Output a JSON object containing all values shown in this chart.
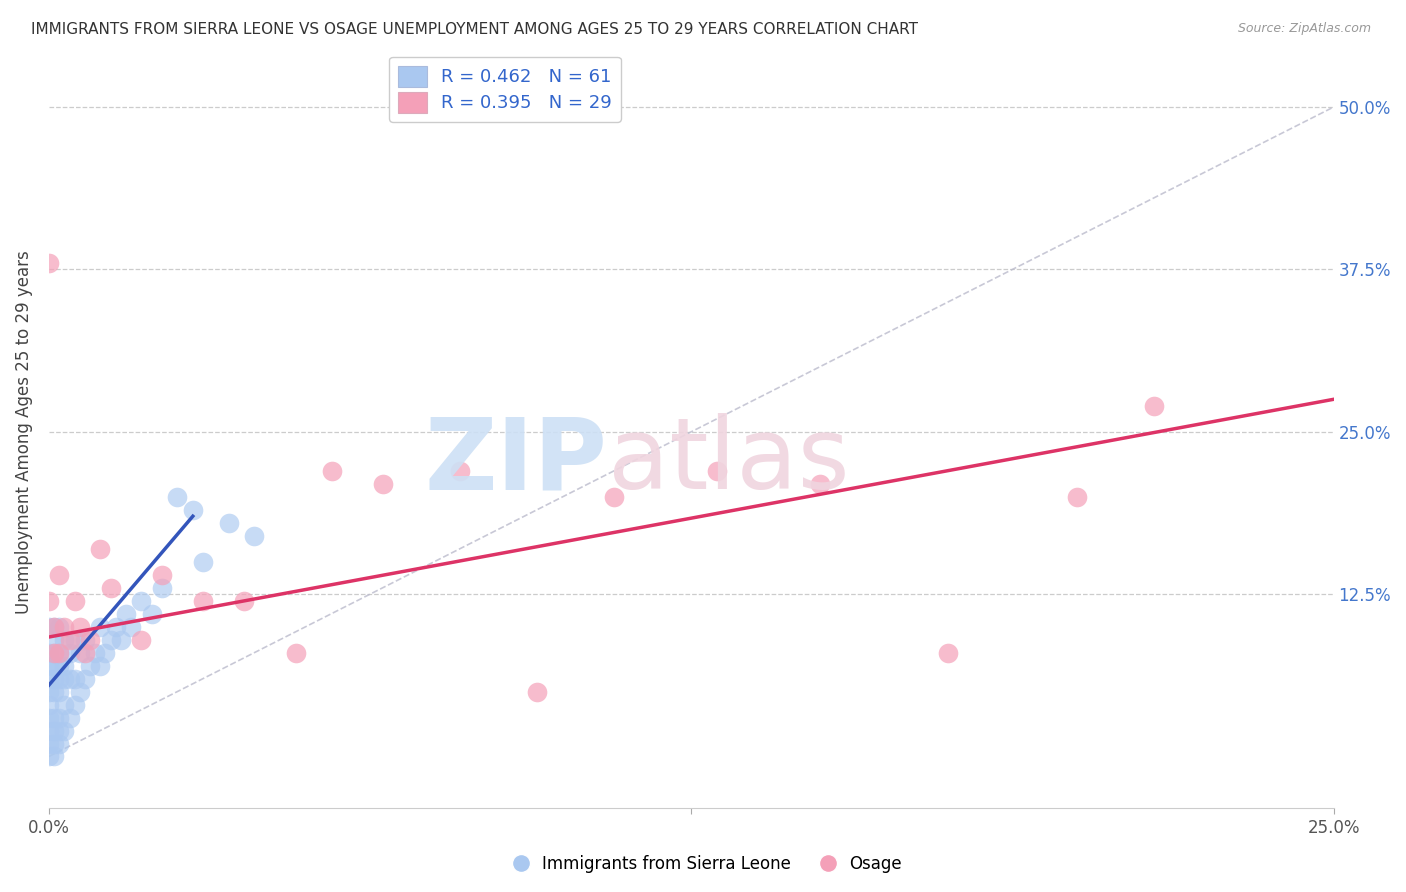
{
  "title": "IMMIGRANTS FROM SIERRA LEONE VS OSAGE UNEMPLOYMENT AMONG AGES 25 TO 29 YEARS CORRELATION CHART",
  "source": "Source: ZipAtlas.com",
  "ylabel": "Unemployment Among Ages 25 to 29 years",
  "xmin": 0.0,
  "xmax": 0.25,
  "ymin": -0.04,
  "ymax": 0.54,
  "legend_blue_label": "R = 0.462   N = 61",
  "legend_pink_label": "R = 0.395   N = 29",
  "blue_color": "#aac8f0",
  "pink_color": "#f4a0b8",
  "blue_line_color": "#3355bb",
  "pink_line_color": "#dd3366",
  "diag_color": "#bbbbcc",
  "blue_scatter_x": [
    0.0,
    0.0,
    0.0,
    0.0,
    0.0,
    0.0,
    0.0,
    0.0,
    0.0,
    0.0,
    0.001,
    0.001,
    0.001,
    0.001,
    0.001,
    0.001,
    0.001,
    0.001,
    0.001,
    0.001,
    0.002,
    0.002,
    0.002,
    0.002,
    0.002,
    0.002,
    0.002,
    0.002,
    0.003,
    0.003,
    0.003,
    0.003,
    0.003,
    0.004,
    0.004,
    0.004,
    0.005,
    0.005,
    0.005,
    0.006,
    0.006,
    0.007,
    0.007,
    0.008,
    0.009,
    0.01,
    0.01,
    0.011,
    0.012,
    0.013,
    0.014,
    0.015,
    0.016,
    0.018,
    0.02,
    0.022,
    0.025,
    0.028,
    0.03,
    0.035,
    0.04
  ],
  "blue_scatter_y": [
    0.0,
    0.01,
    0.02,
    0.03,
    0.04,
    0.05,
    0.06,
    0.07,
    0.08,
    0.1,
    0.0,
    0.01,
    0.02,
    0.03,
    0.05,
    0.06,
    0.07,
    0.08,
    0.09,
    0.1,
    0.01,
    0.02,
    0.03,
    0.05,
    0.06,
    0.07,
    0.08,
    0.1,
    0.02,
    0.04,
    0.06,
    0.07,
    0.09,
    0.03,
    0.06,
    0.08,
    0.04,
    0.06,
    0.09,
    0.05,
    0.08,
    0.06,
    0.09,
    0.07,
    0.08,
    0.07,
    0.1,
    0.08,
    0.09,
    0.1,
    0.09,
    0.11,
    0.1,
    0.12,
    0.11,
    0.13,
    0.2,
    0.19,
    0.15,
    0.18,
    0.17
  ],
  "pink_scatter_x": [
    0.0,
    0.0,
    0.001,
    0.001,
    0.002,
    0.002,
    0.003,
    0.004,
    0.005,
    0.006,
    0.007,
    0.008,
    0.01,
    0.012,
    0.018,
    0.022,
    0.03,
    0.038,
    0.048,
    0.055,
    0.065,
    0.08,
    0.095,
    0.11,
    0.13,
    0.15,
    0.175,
    0.2,
    0.215
  ],
  "pink_scatter_y": [
    0.38,
    0.12,
    0.1,
    0.08,
    0.14,
    0.08,
    0.1,
    0.09,
    0.12,
    0.1,
    0.08,
    0.09,
    0.16,
    0.13,
    0.09,
    0.14,
    0.12,
    0.12,
    0.08,
    0.22,
    0.21,
    0.22,
    0.05,
    0.2,
    0.22,
    0.21,
    0.08,
    0.2,
    0.27
  ],
  "blue_trend_x": [
    0.0,
    0.028
  ],
  "blue_trend_y": [
    0.055,
    0.185
  ],
  "pink_trend_x": [
    0.0,
    0.25
  ],
  "pink_trend_y": [
    0.092,
    0.275
  ],
  "diag_line_x": [
    0.0,
    0.25
  ],
  "diag_line_y": [
    0.0,
    0.5
  ],
  "ytick_vals": [
    0.0,
    0.125,
    0.25,
    0.375,
    0.5
  ],
  "ytick_labs": [
    "",
    "12.5%",
    "25.0%",
    "37.5%",
    "50.0%"
  ],
  "xtick_vals": [
    0.0,
    0.125,
    0.25
  ],
  "xtick_labs": [
    "0.0%",
    "",
    "25.0%"
  ]
}
